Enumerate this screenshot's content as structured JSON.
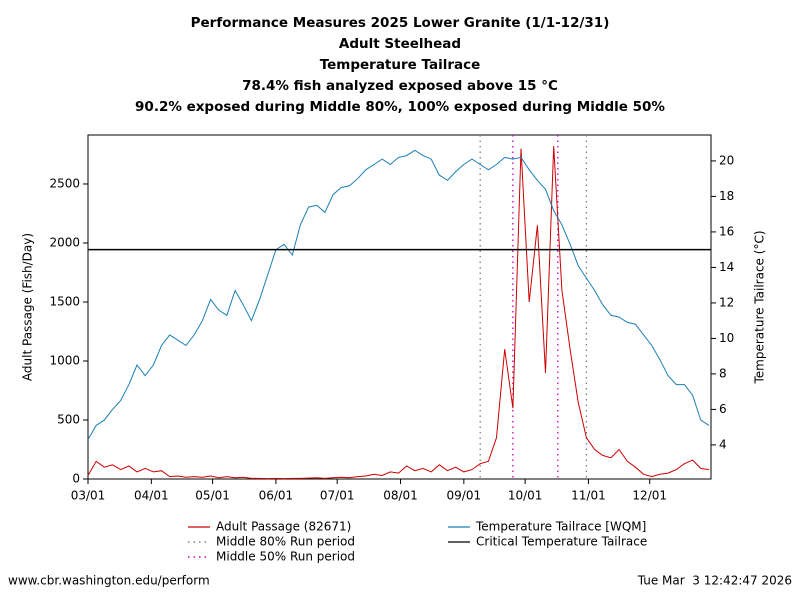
{
  "chart_data": {
    "type": "line",
    "title": [
      "Performance Measures 2025 Lower Granite (1/1-12/31)",
      "Adult Steelhead",
      "Temperature Tailrace",
      "78.4% fish analyzed exposed above 15 °C",
      "90.2% exposed during Middle 80%, 100% exposed during Middle 50%"
    ],
    "ylabel": "Adult Passage (Fish/Day)",
    "y2label": "Temperature Tailrace (°C)",
    "x": [
      "03/01",
      "03/05",
      "03/09",
      "03/13",
      "03/17",
      "03/21",
      "03/25",
      "03/29",
      "04/02",
      "04/06",
      "04/10",
      "04/14",
      "04/18",
      "04/22",
      "04/26",
      "04/30",
      "05/04",
      "05/08",
      "05/12",
      "05/16",
      "05/20",
      "05/24",
      "05/28",
      "06/01",
      "06/05",
      "06/09",
      "06/13",
      "06/17",
      "06/21",
      "06/25",
      "06/29",
      "07/03",
      "07/07",
      "07/11",
      "07/15",
      "07/19",
      "07/23",
      "07/27",
      "07/31",
      "08/04",
      "08/08",
      "08/12",
      "08/16",
      "08/20",
      "08/24",
      "08/28",
      "09/01",
      "09/05",
      "09/09",
      "09/13",
      "09/17",
      "09/21",
      "09/25",
      "09/29",
      "10/03",
      "10/07",
      "10/11",
      "10/15",
      "10/19",
      "10/23",
      "10/27",
      "10/31",
      "11/04",
      "11/08",
      "11/12",
      "11/16",
      "11/20",
      "11/24",
      "11/28",
      "12/02",
      "12/06",
      "12/10",
      "12/14",
      "12/18",
      "12/22",
      "12/26",
      "12/30"
    ],
    "xlim": [
      "03/01",
      "12/31"
    ],
    "xticks": [
      "03/01",
      "04/01",
      "05/01",
      "06/01",
      "07/01",
      "08/01",
      "09/01",
      "10/01",
      "11/01",
      "12/01"
    ],
    "ylim": [
      0,
      2915
    ],
    "yticks": [
      0,
      500,
      1000,
      1500,
      2000,
      2500
    ],
    "y2lim": [
      2.08,
      21.46
    ],
    "y2ticks": [
      4,
      6,
      8,
      10,
      12,
      14,
      16,
      18,
      20
    ],
    "series": [
      {
        "name": "Adult Passage (82671)",
        "color": "#cc0000",
        "values": [
          30,
          150,
          100,
          120,
          80,
          110,
          60,
          90,
          60,
          70,
          20,
          25,
          15,
          20,
          15,
          25,
          10,
          20,
          10,
          15,
          5,
          5,
          3,
          5,
          3,
          5,
          5,
          8,
          10,
          5,
          10,
          15,
          10,
          20,
          25,
          40,
          30,
          60,
          50,
          110,
          70,
          90,
          60,
          120,
          70,
          100,
          60,
          80,
          130,
          150,
          350,
          1100,
          600,
          2800,
          1500,
          2150,
          900,
          2820,
          1600,
          1100,
          650,
          350,
          250,
          200,
          180,
          250,
          150,
          100,
          40,
          20,
          40,
          50,
          80,
          130,
          160,
          90,
          80
        ]
      },
      {
        "name": "Temperature Tailrace [WQM]",
        "color": "#1a7fb5",
        "axis": "y2",
        "values": [
          4.3,
          5.1,
          5.4,
          6.0,
          6.5,
          7.4,
          8.5,
          7.9,
          8.5,
          9.6,
          10.2,
          9.9,
          9.6,
          10.2,
          11.0,
          12.2,
          11.6,
          11.3,
          12.7,
          11.9,
          11.0,
          12.2,
          13.6,
          15.0,
          15.3,
          14.7,
          16.4,
          17.4,
          17.5,
          17.1,
          18.1,
          18.5,
          18.6,
          19.0,
          19.5,
          19.8,
          20.1,
          19.8,
          20.2,
          20.3,
          20.6,
          20.3,
          20.1,
          19.2,
          18.9,
          19.4,
          19.8,
          20.1,
          19.8,
          19.5,
          19.8,
          20.2,
          20.1,
          20.2,
          19.5,
          18.9,
          18.4,
          17.2,
          16.4,
          15.3,
          14.1,
          13.4,
          12.7,
          11.9,
          11.3,
          11.2,
          10.9,
          10.8,
          10.2,
          9.6,
          8.8,
          7.9,
          7.4,
          7.4,
          6.8,
          5.4,
          5.1
        ]
      }
    ],
    "hlines": [
      {
        "name": "Critical Temperature Tailrace",
        "color": "#000000",
        "axis": "y2",
        "value": 15
      }
    ],
    "vlines": [
      {
        "name": "Middle 80% Run period",
        "color": "#808080",
        "x": [
          "09/09",
          "10/31"
        ]
      },
      {
        "name": "Middle 50% Run period",
        "color": "#cc00cc",
        "x": [
          "09/25",
          "10/17"
        ]
      }
    ]
  },
  "footer": {
    "url": "www.cbr.washington.edu/perform",
    "timestamp": "Tue Mar  3 12:42:47 2026"
  }
}
